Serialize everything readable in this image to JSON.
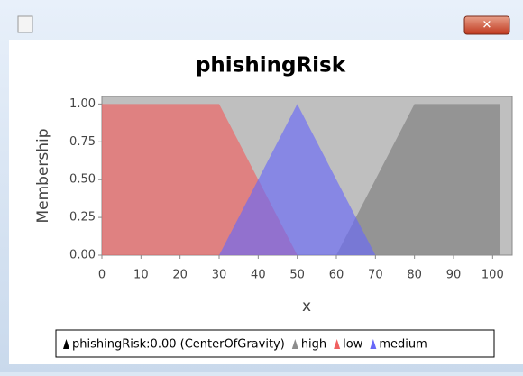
{
  "chart_data": {
    "type": "area",
    "title": "phishingRisk",
    "x_label": "x",
    "y_label": "Membership",
    "xlim": [
      0,
      105
    ],
    "xticks": [
      0,
      10,
      20,
      30,
      40,
      50,
      60,
      70,
      80,
      90,
      100
    ],
    "ylim": [
      0,
      1.05
    ],
    "yticks": [
      {
        "value": 0,
        "label": "0.00"
      },
      {
        "value": 0.25,
        "label": "0.25"
      },
      {
        "value": 0.5,
        "label": "0.50"
      },
      {
        "value": 0.75,
        "label": "0.75"
      },
      {
        "value": 1,
        "label": "1.00"
      }
    ],
    "series": [
      {
        "name": "phishingRisk:0.00 (CenterOfGravity)",
        "color": "#000000",
        "x": [],
        "values": []
      },
      {
        "name": "high",
        "color": "#8c8c8c",
        "x": [
          60,
          80,
          102,
          102
        ],
        "values": [
          0,
          1,
          1,
          0
        ]
      },
      {
        "name": "low",
        "color": "#f06060",
        "x": [
          0,
          30,
          50
        ],
        "values": [
          1,
          1,
          0
        ]
      },
      {
        "name": "medium",
        "color": "#6868f8",
        "x": [
          30,
          50,
          70
        ],
        "values": [
          0,
          1,
          0
        ]
      }
    ]
  }
}
